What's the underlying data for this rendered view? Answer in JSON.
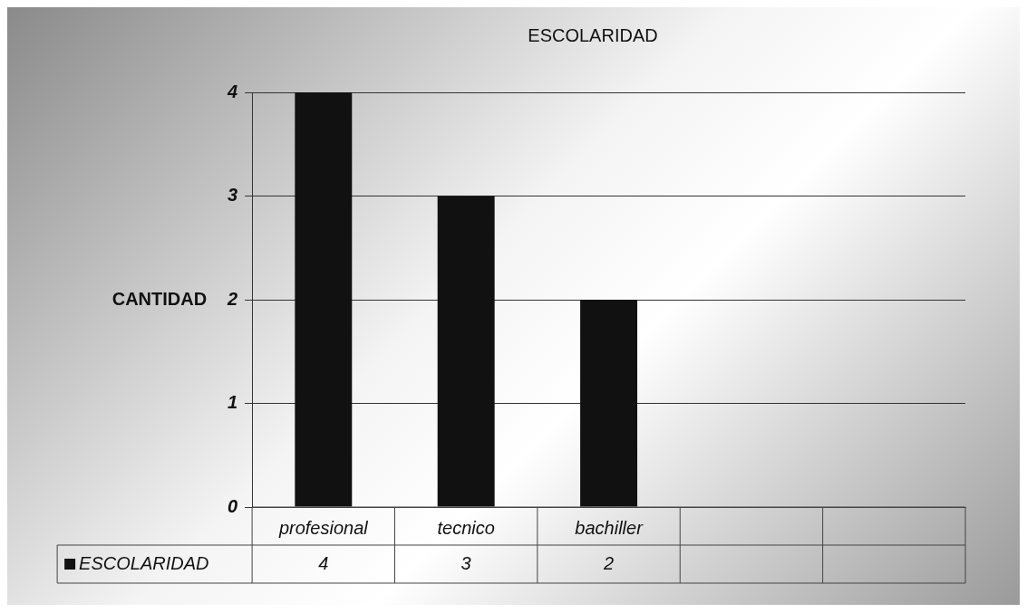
{
  "chart_data": {
    "type": "bar",
    "title": "ESCOLARIDAD",
    "ylabel": "CANTIDAD",
    "categories": [
      "profesional",
      "tecnico",
      "bachiller",
      null,
      null
    ],
    "series": [
      {
        "name": "ESCOLARIDAD",
        "color": "#111111",
        "values": [
          4,
          3,
          2,
          null,
          null
        ]
      }
    ],
    "ylim": [
      0,
      4
    ],
    "yticks": [
      0,
      1,
      2,
      3,
      4
    ],
    "grid": "y",
    "legend": "bottom left",
    "data_labels": true
  }
}
